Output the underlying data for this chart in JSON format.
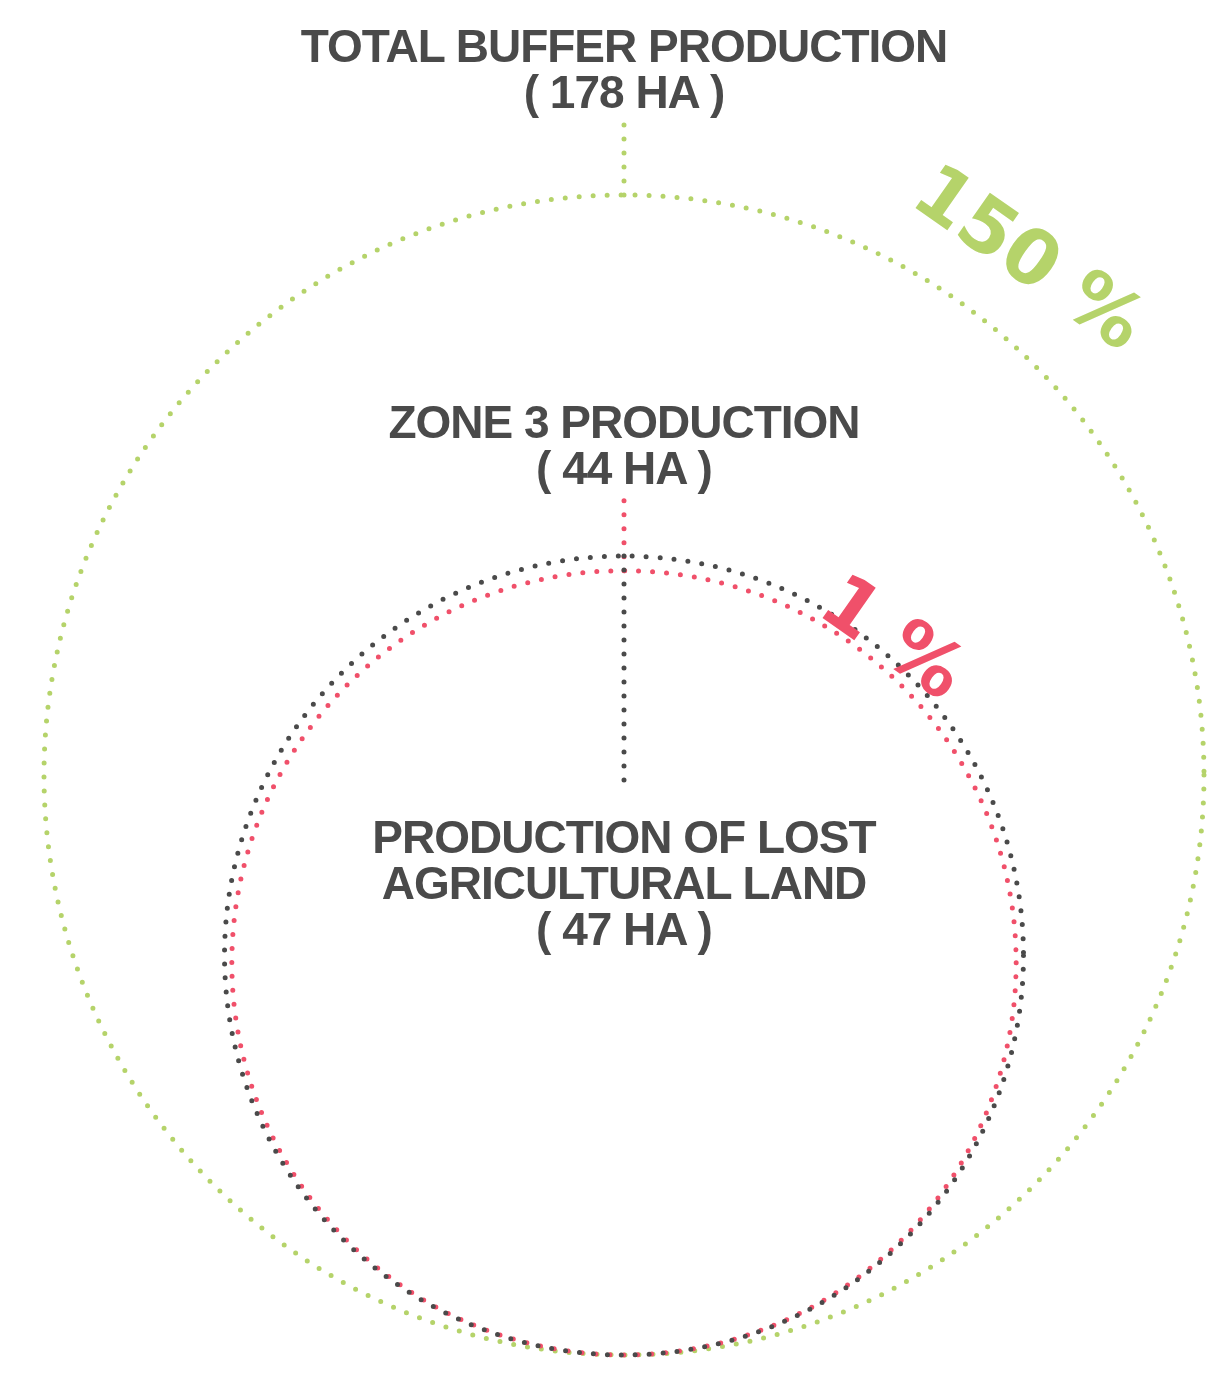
{
  "chart_data": {
    "type": "other",
    "categories": [
      "TOTAL BUFFER PRODUCTION",
      "ZONE 3 PRODUCTION",
      "PRODUCTION OF LOST AGRICULTURAL LAND"
    ],
    "values": [
      178,
      44,
      47
    ],
    "value_labels": [
      "(  178 HA  )",
      "(  44 HA )",
      "(  47 HA  )"
    ],
    "colors": [
      "#b5d36a",
      "#f0506a",
      "#4a4a4a"
    ],
    "annotations": [
      "150 %",
      "1 %"
    ]
  }
}
